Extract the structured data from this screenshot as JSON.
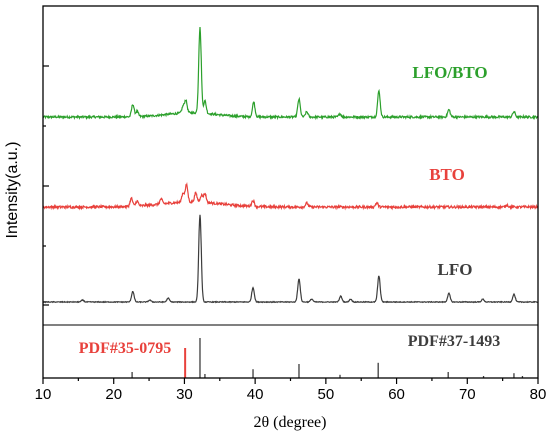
{
  "chart_data": {
    "type": "line",
    "xlabel": "2θ (degree)",
    "ylabel": "Intensity(a.u.)",
    "xlim": [
      10,
      80
    ],
    "xticks": [
      10,
      20,
      30,
      40,
      50,
      60,
      70,
      80
    ],
    "grid": false,
    "series": [
      {
        "name": "LFO/BTO",
        "color": "#2ca02c",
        "baseline": 0.3,
        "noise": 0.01,
        "peaks": [
          {
            "x": 22.7,
            "h": 0.12
          },
          {
            "x": 23.3,
            "h": 0.05
          },
          {
            "x": 29.8,
            "h": 0.06
          },
          {
            "x": 30.2,
            "h": 0.12
          },
          {
            "x": 32.2,
            "h": 0.82
          },
          {
            "x": 32.9,
            "h": 0.12
          },
          {
            "x": 39.8,
            "h": 0.14
          },
          {
            "x": 46.2,
            "h": 0.17
          },
          {
            "x": 47.3,
            "h": 0.05
          },
          {
            "x": 52.0,
            "h": 0.03
          },
          {
            "x": 57.5,
            "h": 0.25
          },
          {
            "x": 67.4,
            "h": 0.07
          },
          {
            "x": 76.6,
            "h": 0.05
          }
        ]
      },
      {
        "name": "BTO",
        "color": "#e8413c",
        "baseline": 0.0,
        "noise": 0.012,
        "peaks": [
          {
            "x": 22.5,
            "h": 0.08
          },
          {
            "x": 23.3,
            "h": 0.05
          },
          {
            "x": 26.7,
            "h": 0.05
          },
          {
            "x": 29.8,
            "h": 0.09
          },
          {
            "x": 30.3,
            "h": 0.17
          },
          {
            "x": 31.6,
            "h": 0.09
          },
          {
            "x": 32.4,
            "h": 0.07
          },
          {
            "x": 32.9,
            "h": 0.09
          },
          {
            "x": 39.7,
            "h": 0.06
          },
          {
            "x": 47.3,
            "h": 0.04
          },
          {
            "x": 57.2,
            "h": 0.04
          },
          {
            "x": 75.6,
            "h": 0.02
          }
        ]
      },
      {
        "name": "LFO",
        "color": "#3d3d3d",
        "baseline": 0.0,
        "noise": 0.004,
        "peaks": [
          {
            "x": 15.6,
            "h": 0.02
          },
          {
            "x": 22.7,
            "h": 0.11
          },
          {
            "x": 25.1,
            "h": 0.02
          },
          {
            "x": 27.7,
            "h": 0.04
          },
          {
            "x": 32.2,
            "h": 0.91
          },
          {
            "x": 39.7,
            "h": 0.15
          },
          {
            "x": 46.2,
            "h": 0.24
          },
          {
            "x": 48.0,
            "h": 0.03
          },
          {
            "x": 52.1,
            "h": 0.06
          },
          {
            "x": 53.5,
            "h": 0.03
          },
          {
            "x": 57.5,
            "h": 0.27
          },
          {
            "x": 67.4,
            "h": 0.09
          },
          {
            "x": 72.2,
            "h": 0.03
          },
          {
            "x": 76.6,
            "h": 0.08
          }
        ]
      }
    ],
    "reference_patterns": [
      {
        "label": "PDF#35-0795",
        "color": "#e8413c",
        "lines": [
          {
            "x": 30.1,
            "h": 1.0
          }
        ]
      },
      {
        "label": "PDF#37-1493",
        "color": "#3d3d3d",
        "lines": [
          {
            "x": 22.6,
            "h": 0.15
          },
          {
            "x": 32.2,
            "h": 1.0
          },
          {
            "x": 32.9,
            "h": 0.1
          },
          {
            "x": 39.7,
            "h": 0.22
          },
          {
            "x": 46.2,
            "h": 0.35
          },
          {
            "x": 52.0,
            "h": 0.08
          },
          {
            "x": 57.4,
            "h": 0.38
          },
          {
            "x": 67.3,
            "h": 0.15
          },
          {
            "x": 72.3,
            "h": 0.05
          },
          {
            "x": 76.6,
            "h": 0.12
          },
          {
            "x": 77.8,
            "h": 0.05
          }
        ]
      }
    ]
  }
}
